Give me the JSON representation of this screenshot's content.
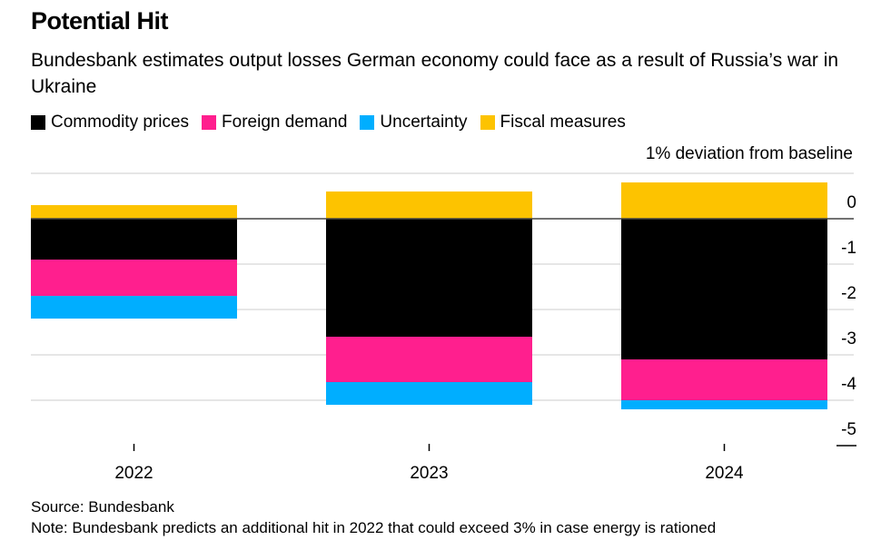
{
  "title": "Potential Hit",
  "subtitle": "Bundesbank estimates output losses German economy could face as a result of Russia’s war in Ukraine",
  "source": "Source: Bundesbank",
  "note": "Note: Bundesbank predicts an additional hit in 2022 that could exceed 3% in case energy is rationed",
  "chart_data": {
    "type": "bar",
    "stacked": true,
    "ylabel": "1% deviation from baseline",
    "categories": [
      "2022",
      "2023",
      "2024"
    ],
    "series": [
      {
        "name": "Commodity prices",
        "color": "#000000",
        "values": [
          -0.9,
          -2.6,
          -3.1
        ]
      },
      {
        "name": "Foreign demand",
        "color": "#ff1f8e",
        "values": [
          -0.8,
          -1.0,
          -0.9
        ]
      },
      {
        "name": "Uncertainty",
        "color": "#00aeff",
        "values": [
          -0.5,
          -0.5,
          -0.2
        ]
      },
      {
        "name": "Fiscal measures",
        "color": "#fdc300",
        "values": [
          0.3,
          0.6,
          0.8
        ]
      }
    ],
    "ylim": [
      -5,
      1
    ],
    "yticks": [
      0,
      -1,
      -2,
      -3,
      -4,
      -5
    ],
    "ytick_labels": [
      "0",
      "-1",
      "-2",
      "-3",
      "-4",
      "-5"
    ],
    "grid": true,
    "legend": "top-left",
    "y_axis_side": "right"
  }
}
